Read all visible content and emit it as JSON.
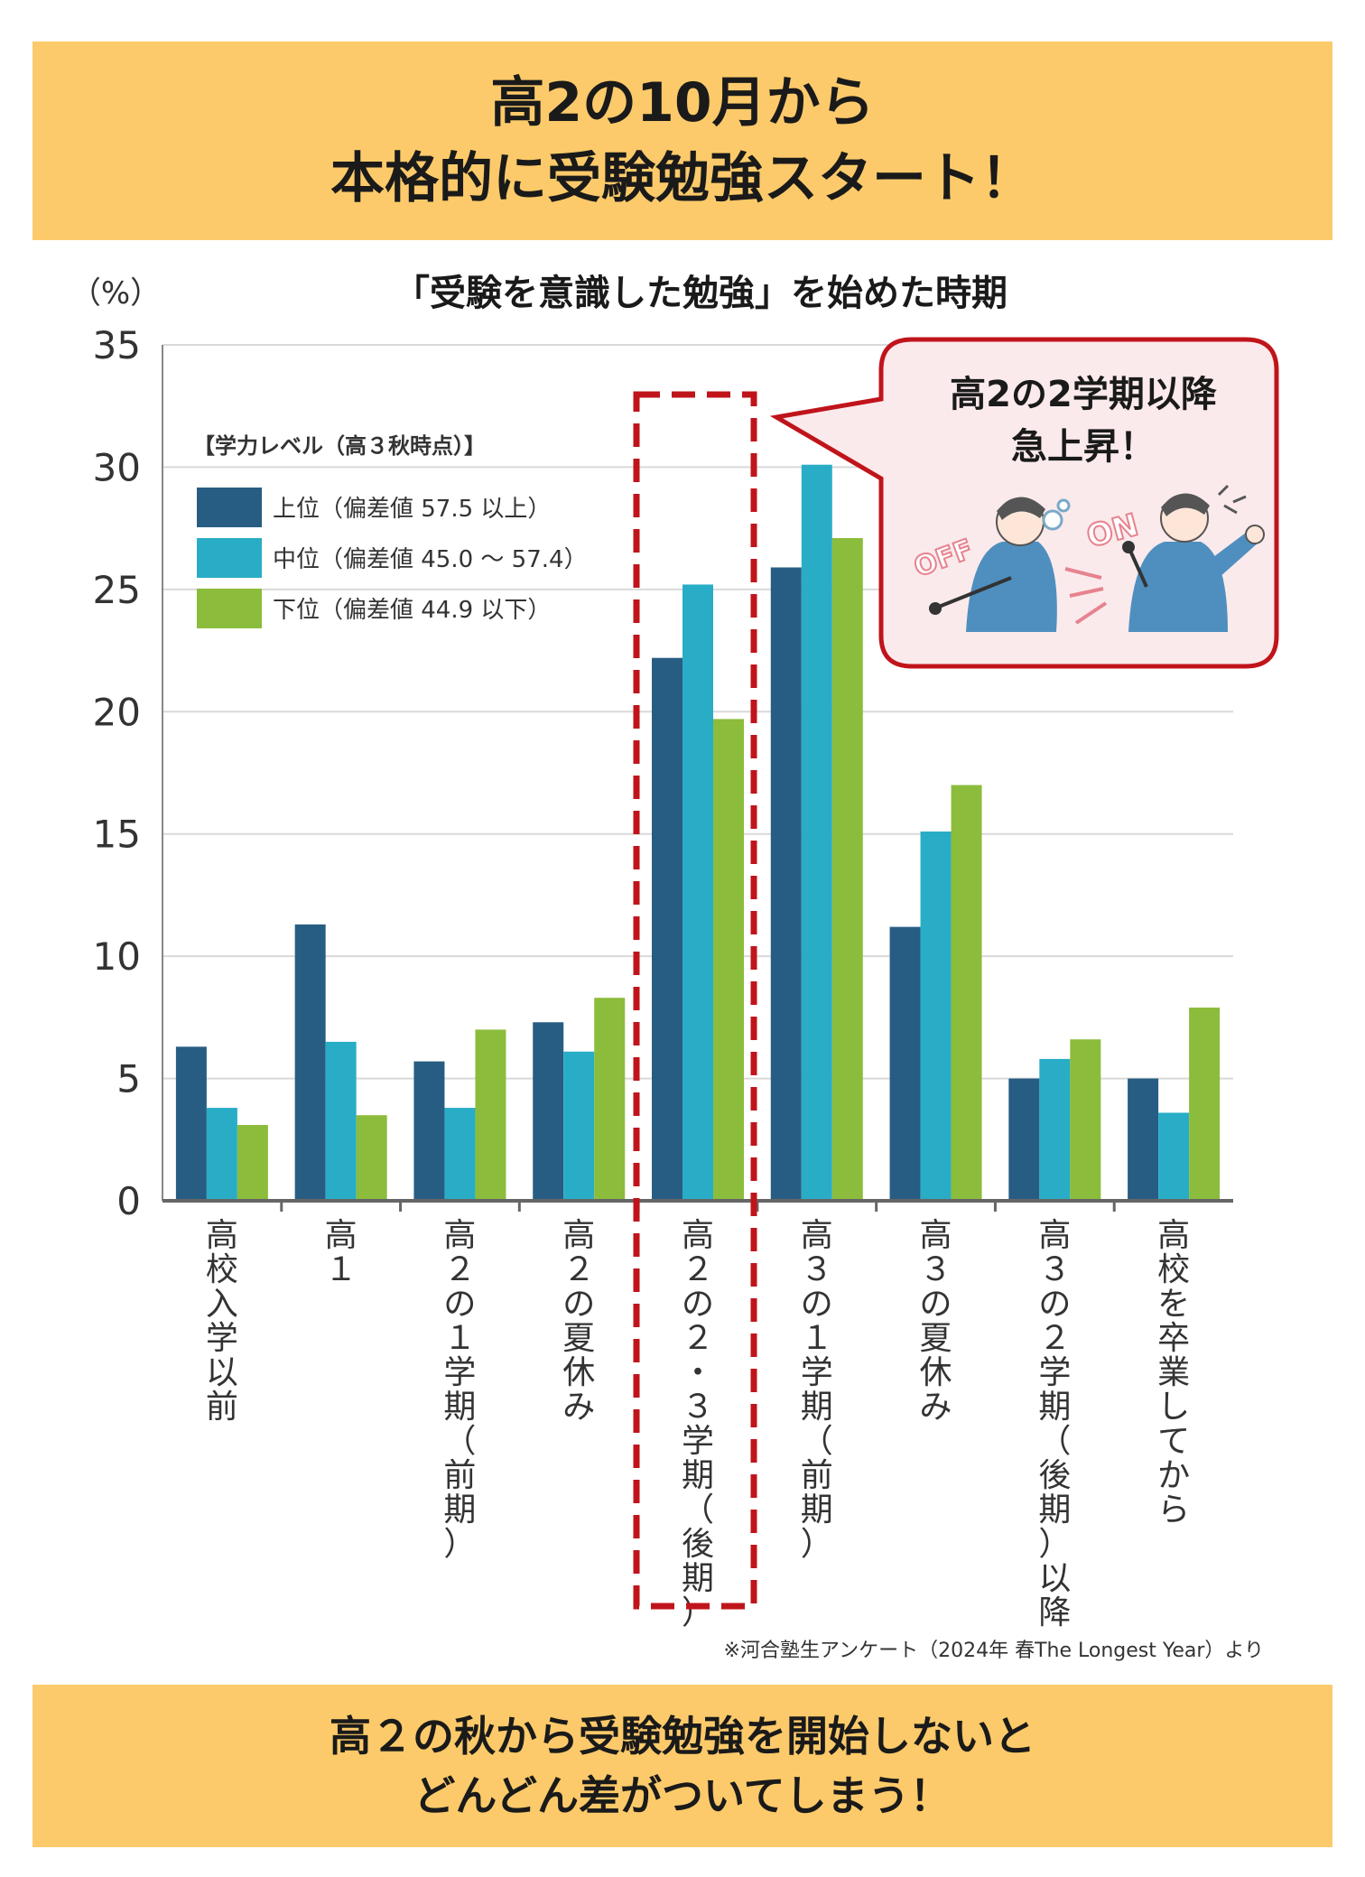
{
  "header": {
    "line1": "高2の10月から",
    "line2": "本格的に受験勉強スタート！"
  },
  "footer": {
    "line1": "高２の秋から受験勉強を開始しないと",
    "line2": "どんどん差がついてしまう！"
  },
  "callout": {
    "line1": "高2の2学期以降",
    "line2": "急上昇！",
    "off_label": "OFF",
    "on_label": "ON"
  },
  "source_note": "※河合塾生アンケート（2024年 春The Longest Year）より",
  "colors": {
    "banner": "#fcca6a",
    "upper": "#275d83",
    "middle": "#29adc6",
    "lower": "#8cbc3b",
    "highlight": "#c0141b",
    "callout_fill": "#fbeaec"
  },
  "chart_data": {
    "type": "bar",
    "title": "「受験を意識した勉強」を始めた時期",
    "ylabel": "（%）",
    "ylim": [
      0,
      35
    ],
    "yticks": [
      0,
      5,
      10,
      15,
      20,
      25,
      30,
      35
    ],
    "grid": true,
    "legend_title": "【学力レベル（高３秋時点）】",
    "legend_position": "top-left",
    "categories": [
      "高校入学以前",
      "高１",
      "高２の１学期（前期）",
      "高２の夏休み",
      "高２の２・３学期（後期）",
      "高３の１学期（前期）",
      "高３の夏休み",
      "高３の２学期（後期）以降",
      "高校を卒業してから"
    ],
    "highlight_category": "高２の２・３学期（後期）",
    "series": [
      {
        "name": "上位（偏差値 57.5 以上）",
        "values": [
          6.3,
          11.3,
          5.7,
          7.3,
          22.2,
          25.9,
          11.2,
          5.0,
          5.0
        ]
      },
      {
        "name": "中位（偏差値 45.0 〜 57.4）",
        "values": [
          3.8,
          6.5,
          3.8,
          6.1,
          25.2,
          30.1,
          15.1,
          5.8,
          3.6
        ]
      },
      {
        "name": "下位（偏差値 44.9 以下）",
        "values": [
          3.1,
          3.5,
          7.0,
          8.3,
          19.7,
          27.1,
          17.0,
          6.6,
          7.9
        ]
      }
    ]
  }
}
